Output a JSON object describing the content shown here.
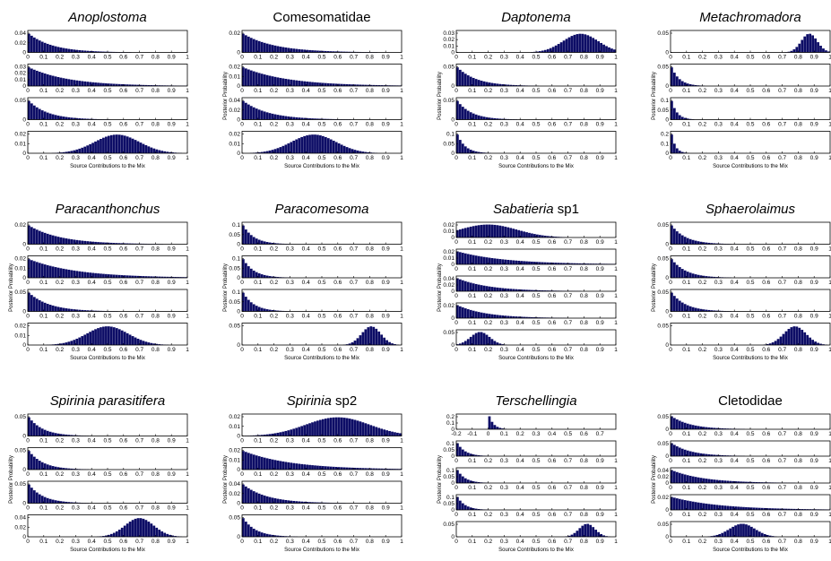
{
  "figure": {
    "background": "#ffffff",
    "bar_color": "#0d0d66",
    "axis_color": "#000000"
  },
  "chart_data": [
    {
      "type": "bar",
      "title": "Anoplostoma",
      "title_italic": "Anoplostoma",
      "title_plain": "",
      "italic": true,
      "xlabel": "Source Contributions to the Mix",
      "ylabel": "",
      "xticks": [
        "0",
        "0.1",
        "0.2",
        "0.3",
        "0.4",
        "0.5",
        "0.6",
        "0.7",
        "0.8",
        "0.9",
        "1"
      ],
      "panels": [
        {
          "shape": "exp",
          "param": 0.15,
          "ylim": [
            0,
            0.045
          ],
          "yticks": [
            "0.04",
            "0.02",
            "0"
          ]
        },
        {
          "shape": "exp",
          "param": 0.25,
          "ylim": [
            0,
            0.035
          ],
          "yticks": [
            "0.03",
            "0.02",
            "0.01",
            "0"
          ]
        },
        {
          "shape": "exp",
          "param": 0.12,
          "ylim": [
            0,
            0.06
          ],
          "yticks": [
            "0.05",
            "0"
          ]
        },
        {
          "shape": "gauss",
          "mu": 0.56,
          "sigma": 0.14,
          "ylim": [
            0,
            0.03
          ],
          "yticks": [
            "0.02",
            "0.01",
            "0"
          ]
        }
      ]
    },
    {
      "type": "bar",
      "title": "Comesomatidae",
      "title_italic": "",
      "title_plain": "Comesomatidae",
      "italic": false,
      "xlabel": "Source Contributions to the Mix",
      "ylabel": "Posterior Probability",
      "xticks": [
        "0",
        "0.1",
        "0.2",
        "0.3",
        "0.4",
        "0.5",
        "0.6",
        "0.7",
        "0.8",
        "0.9",
        "1"
      ],
      "panels": [
        {
          "shape": "exp",
          "param": 0.2,
          "ylim": [
            0,
            0.035
          ],
          "yticks": [
            "0.02",
            "0"
          ]
        },
        {
          "shape": "exp",
          "param": 0.28,
          "ylim": [
            0,
            0.03
          ],
          "yticks": [
            "0.02",
            "0.01",
            "0"
          ]
        },
        {
          "shape": "exp",
          "param": 0.16,
          "ylim": [
            0,
            0.045
          ],
          "yticks": [
            "0.04",
            "0.02",
            "0"
          ]
        },
        {
          "shape": "gauss",
          "mu": 0.45,
          "sigma": 0.14,
          "ylim": [
            0,
            0.03
          ],
          "yticks": [
            "0.02",
            "0.01",
            "0"
          ]
        }
      ]
    },
    {
      "type": "bar",
      "title": "Daptonema",
      "title_italic": "Daptonema",
      "title_plain": "",
      "italic": true,
      "xlabel": "Source Contributions to the Mix",
      "ylabel": "Posterior Probability",
      "xticks": [
        "0",
        "0.1",
        "0.2",
        "0.3",
        "0.4",
        "0.5",
        "0.6",
        "0.7",
        "0.8",
        "0.9",
        "1"
      ],
      "panels": [
        {
          "shape": "gauss",
          "mu": 0.78,
          "sigma": 0.11,
          "ylim": [
            0,
            0.035
          ],
          "yticks": [
            "0.03",
            "0.02",
            "0.01",
            "0"
          ]
        },
        {
          "shape": "exp",
          "param": 0.12,
          "ylim": [
            0,
            0.06
          ],
          "yticks": [
            "0.05",
            "0"
          ]
        },
        {
          "shape": "exp",
          "param": 0.09,
          "ylim": [
            0,
            0.07
          ],
          "yticks": [
            "0.05",
            "0"
          ]
        },
        {
          "shape": "exp",
          "param": 0.05,
          "ylim": [
            0,
            0.13
          ],
          "yticks": [
            "0.1",
            "0.05",
            "0"
          ]
        }
      ]
    },
    {
      "type": "bar",
      "title": "Metachromadora",
      "title_italic": "Metachromadora",
      "title_plain": "",
      "italic": true,
      "xlabel": "Source Contributions to the Mix",
      "ylabel": "Posterior Probability",
      "xticks": [
        "0",
        "0.1",
        "0.2",
        "0.3",
        "0.4",
        "0.5",
        "0.6",
        "0.7",
        "0.8",
        "0.9",
        "1"
      ],
      "panels": [
        {
          "shape": "gauss",
          "mu": 0.87,
          "sigma": 0.05,
          "ylim": [
            0,
            0.06
          ],
          "yticks": [
            "0.05",
            "0"
          ]
        },
        {
          "shape": "exp",
          "param": 0.05,
          "ylim": [
            0,
            0.1
          ],
          "yticks": [
            "0.05",
            "0"
          ]
        },
        {
          "shape": "exp",
          "param": 0.035,
          "ylim": [
            0,
            0.16
          ],
          "yticks": [
            "0.1",
            "0.05",
            "0"
          ]
        },
        {
          "shape": "exp",
          "param": 0.025,
          "ylim": [
            0,
            0.22
          ],
          "yticks": [
            "0.2",
            "0.1",
            "0"
          ]
        }
      ]
    },
    {
      "type": "bar",
      "title": "Paracanthonchus",
      "title_italic": "Paracanthonchus",
      "title_plain": "",
      "italic": true,
      "xlabel": "Source Contributions to the Mix",
      "ylabel": "Posterior Probability",
      "xticks": [
        "0",
        "0.1",
        "0.2",
        "0.3",
        "0.4",
        "0.5",
        "0.6",
        "0.7",
        "0.8",
        "0.9",
        "1"
      ],
      "panels": [
        {
          "shape": "exp",
          "param": 0.2,
          "ylim": [
            0,
            0.035
          ],
          "yticks": [
            "0.02",
            "0"
          ]
        },
        {
          "shape": "exp",
          "param": 0.3,
          "ylim": [
            0,
            0.03
          ],
          "yticks": [
            "0.02",
            "0.01",
            "0"
          ]
        },
        {
          "shape": "exp",
          "param": 0.13,
          "ylim": [
            0,
            0.06
          ],
          "yticks": [
            "0.05",
            "0"
          ]
        },
        {
          "shape": "gauss",
          "mu": 0.5,
          "sigma": 0.13,
          "ylim": [
            0,
            0.025
          ],
          "yticks": [
            "0.02",
            "0.01",
            "0"
          ]
        }
      ]
    },
    {
      "type": "bar",
      "title": "Paracomesoma",
      "title_italic": "Paracomesoma",
      "title_plain": "",
      "italic": true,
      "xlabel": "Source Contributions to the Mix",
      "ylabel": "Posterior Probability",
      "xticks": [
        "0",
        "0.1",
        "0.2",
        "0.3",
        "0.4",
        "0.5",
        "0.6",
        "0.7",
        "0.8",
        "0.9",
        "1"
      ],
      "panels": [
        {
          "shape": "exp",
          "param": 0.07,
          "ylim": [
            0,
            0.12
          ],
          "yticks": [
            "0.1",
            "0.05",
            "0"
          ]
        },
        {
          "shape": "exp",
          "param": 0.07,
          "ylim": [
            0,
            0.12
          ],
          "yticks": [
            "0.1",
            "0.05",
            "0"
          ]
        },
        {
          "shape": "exp",
          "param": 0.07,
          "ylim": [
            0,
            0.12
          ],
          "yticks": [
            "0.1",
            "0.05",
            "0"
          ]
        },
        {
          "shape": "gauss",
          "mu": 0.81,
          "sigma": 0.06,
          "ylim": [
            0,
            0.05
          ],
          "yticks": [
            "0.05",
            "0"
          ]
        }
      ]
    },
    {
      "type": "bar",
      "title": "Sabatieria sp1",
      "title_italic": "Sabatieria",
      "title_plain": " sp1",
      "italic": true,
      "xlabel": "Source Contributions to the Mix",
      "ylabel": "Posterior Probability",
      "xticks": [
        "0",
        "0.1",
        "0.2",
        "0.3",
        "0.4",
        "0.5",
        "0.6",
        "0.7",
        "0.8",
        "0.9",
        "1"
      ],
      "panels": [
        {
          "shape": "gauss",
          "mu": 0.2,
          "sigma": 0.18,
          "ylim": [
            0,
            0.022
          ],
          "yticks": [
            "0.02",
            "0.01",
            "0"
          ]
        },
        {
          "shape": "exp",
          "param": 0.3,
          "ylim": [
            0,
            0.03
          ],
          "yticks": [
            "0.02",
            "0.01",
            "0"
          ]
        },
        {
          "shape": "exp",
          "param": 0.2,
          "ylim": [
            0,
            0.045
          ],
          "yticks": [
            "0.04",
            "0.02",
            "0"
          ]
        },
        {
          "shape": "exp",
          "param": 0.18,
          "ylim": [
            0,
            0.035
          ],
          "yticks": [
            "0.02",
            "0"
          ]
        },
        {
          "shape": "gauss",
          "mu": 0.15,
          "sigma": 0.06,
          "ylim": [
            0,
            0.07
          ],
          "yticks": [
            "0.05",
            "0"
          ]
        }
      ]
    },
    {
      "type": "bar",
      "title": "Sphaerolaimus",
      "title_italic": "Sphaerolaimus",
      "title_plain": "",
      "italic": true,
      "xlabel": "Source Contributions to the Mix",
      "ylabel": "Posterior Probability",
      "xticks": [
        "0",
        "0.1",
        "0.2",
        "0.3",
        "0.4",
        "0.5",
        "0.6",
        "0.7",
        "0.8",
        "0.9",
        "1"
      ],
      "panels": [
        {
          "shape": "exp",
          "param": 0.09,
          "ylim": [
            0,
            0.08
          ],
          "yticks": [
            "0.05",
            "0"
          ]
        },
        {
          "shape": "exp",
          "param": 0.09,
          "ylim": [
            0,
            0.08
          ],
          "yticks": [
            "0.05",
            "0"
          ]
        },
        {
          "shape": "exp",
          "param": 0.09,
          "ylim": [
            0,
            0.08
          ],
          "yticks": [
            "0.05",
            "0"
          ]
        },
        {
          "shape": "gauss",
          "mu": 0.78,
          "sigma": 0.07,
          "ylim": [
            0,
            0.05
          ],
          "yticks": [
            "0.05",
            "0"
          ]
        }
      ]
    },
    {
      "type": "bar",
      "title": "Spirinia parasitifera",
      "title_italic": "Spirinia parasitifera",
      "title_plain": "",
      "italic": true,
      "xlabel": "Source Contributions to the Mix",
      "ylabel": "Posterior Probability",
      "xticks": [
        "0",
        "0.1",
        "0.2",
        "0.3",
        "0.4",
        "0.5",
        "0.6",
        "0.7",
        "0.8",
        "0.9",
        "1"
      ],
      "panels": [
        {
          "shape": "exp",
          "param": 0.09,
          "ylim": [
            0,
            0.08
          ],
          "yticks": [
            "0.05",
            "0"
          ]
        },
        {
          "shape": "exp",
          "param": 0.09,
          "ylim": [
            0,
            0.08
          ],
          "yticks": [
            "0.05",
            "0"
          ]
        },
        {
          "shape": "exp",
          "param": 0.09,
          "ylim": [
            0,
            0.08
          ],
          "yticks": [
            "0.05",
            "0"
          ]
        },
        {
          "shape": "gauss",
          "mu": 0.7,
          "sigma": 0.09,
          "ylim": [
            0,
            0.04
          ],
          "yticks": [
            "0.04",
            "0.02",
            "0"
          ]
        }
      ]
    },
    {
      "type": "bar",
      "title": "Spirinia sp2",
      "title_italic": "Spirinia",
      "title_plain": " sp2",
      "italic": true,
      "xlabel": "Source Contributions to the Mix",
      "ylabel": "Posterior Probability",
      "xticks": [
        "0",
        "0.1",
        "0.2",
        "0.3",
        "0.4",
        "0.5",
        "0.6",
        "0.7",
        "0.8",
        "0.9",
        "1"
      ],
      "panels": [
        {
          "shape": "gauss",
          "mu": 0.6,
          "sigma": 0.2,
          "ylim": [
            0,
            0.025
          ],
          "yticks": [
            "0.02",
            "0.01",
            "0"
          ]
        },
        {
          "shape": "exp",
          "param": 0.3,
          "ylim": [
            0,
            0.03
          ],
          "yticks": [
            "0.02",
            "0.01",
            "0"
          ]
        },
        {
          "shape": "exp",
          "param": 0.15,
          "ylim": [
            0,
            0.05
          ],
          "yticks": [
            "0.04",
            "0.02",
            "0"
          ]
        },
        {
          "shape": "exp",
          "param": 0.08,
          "ylim": [
            0,
            0.08
          ],
          "yticks": [
            "0.05",
            "0"
          ]
        }
      ]
    },
    {
      "type": "bar",
      "title": "Terschellingia",
      "title_italic": "Terschellingia",
      "title_plain": "",
      "italic": true,
      "xlabel": "Source Contributions to the Mix",
      "ylabel": "Posterior Probability",
      "xticks": [
        "0",
        "0.1",
        "0.2",
        "0.3",
        "0.4",
        "0.5",
        "0.6",
        "0.7",
        "0.8",
        "0.9",
        "1"
      ],
      "panels": [
        {
          "shape": "spike",
          "xmin": -0.2,
          "xmax": 0.8,
          "spike": 0.0,
          "ylim": [
            0,
            0.22
          ],
          "yticks": [
            "0.2",
            "0.1",
            "0"
          ],
          "xticks": [
            "-0.2",
            "-0.1",
            "0",
            "0.1",
            "0.2",
            "0.3",
            "0.4",
            "0.5",
            "0.6",
            "0.7"
          ]
        },
        {
          "shape": "exp",
          "param": 0.05,
          "ylim": [
            0,
            0.12
          ],
          "yticks": [
            "0.1",
            "0.05",
            "0"
          ]
        },
        {
          "shape": "exp",
          "param": 0.05,
          "ylim": [
            0,
            0.12
          ],
          "yticks": [
            "0.1",
            "0.05",
            "0"
          ]
        },
        {
          "shape": "exp",
          "param": 0.05,
          "ylim": [
            0,
            0.12
          ],
          "yticks": [
            "0.1",
            "0.05",
            "0"
          ]
        },
        {
          "shape": "gauss",
          "mu": 0.82,
          "sigma": 0.05,
          "ylim": [
            0,
            0.06
          ],
          "yticks": [
            "0.05",
            "0"
          ]
        }
      ]
    },
    {
      "type": "bar",
      "title": "Cletodidae",
      "title_italic": "",
      "title_plain": "Cletodidae",
      "italic": false,
      "xlabel": "Source Contributions to the Mix",
      "ylabel": "Posterior Probability",
      "xticks": [
        "0",
        "0.1",
        "0.2",
        "0.3",
        "0.4",
        "0.5",
        "0.6",
        "0.7",
        "0.8",
        "0.9",
        "1"
      ],
      "panels": [
        {
          "shape": "exp",
          "param": 0.12,
          "ylim": [
            0,
            0.06
          ],
          "yticks": [
            "0.05",
            "0"
          ]
        },
        {
          "shape": "exp",
          "param": 0.12,
          "ylim": [
            0,
            0.06
          ],
          "yticks": [
            "0.05",
            "0"
          ]
        },
        {
          "shape": "exp",
          "param": 0.2,
          "ylim": [
            0,
            0.045
          ],
          "yticks": [
            "0.04",
            "0.02",
            "0"
          ]
        },
        {
          "shape": "exp",
          "param": 0.3,
          "ylim": [
            0,
            0.04
          ],
          "yticks": [
            "0.02",
            "0"
          ]
        },
        {
          "shape": "gauss",
          "mu": 0.45,
          "sigma": 0.08,
          "ylim": [
            0,
            0.06
          ],
          "yticks": [
            "0.05",
            "0"
          ]
        }
      ]
    }
  ]
}
